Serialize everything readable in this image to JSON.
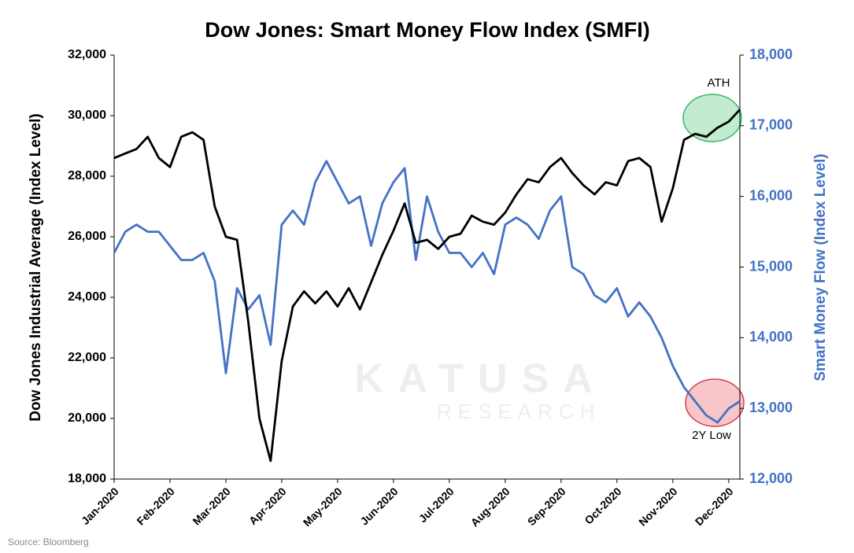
{
  "chart_data": {
    "type": "line",
    "title": "Dow Jones: Smart Money Flow Index (SMFI)",
    "y_label": "Dow Jones Industrial Average (Index Level)",
    "y2_label": "Smart Money Flow (Index Level)",
    "source": "Source: Bloomberg",
    "watermark": [
      "KATUSA",
      "RESEARCH"
    ],
    "annotations": [
      "ATH",
      "2Y Low"
    ],
    "categories": [
      "Jan-2020",
      null,
      null,
      null,
      null,
      "Feb-2020",
      null,
      null,
      null,
      null,
      "Mar-2020",
      null,
      null,
      null,
      null,
      "Apr-2020",
      null,
      null,
      null,
      null,
      "May-2020",
      null,
      null,
      null,
      null,
      "Jun-2020",
      null,
      null,
      null,
      null,
      "Jul-2020",
      null,
      null,
      null,
      null,
      "Aug-2020",
      null,
      null,
      null,
      null,
      "Sep-2020",
      null,
      null,
      null,
      null,
      "Oct-2020",
      null,
      null,
      null,
      null,
      "Nov-2020",
      null,
      null,
      null,
      null,
      "Dec-2020",
      null
    ],
    "series": [
      {
        "color": "#000000",
        "values": [
          28600,
          28750,
          28900,
          29300,
          28600,
          28300,
          29300,
          29450,
          29200,
          27000,
          26000,
          25900,
          23200,
          20000,
          18600,
          21900,
          23700,
          24200,
          23800,
          24200,
          23700,
          24300,
          23600,
          24500,
          25400,
          26200,
          27100,
          25800,
          25900,
          25600,
          26000,
          26100,
          26700,
          26500,
          26400,
          26800,
          27400,
          27900,
          27800,
          28300,
          28600,
          28100,
          27700,
          27400,
          27800,
          27700,
          28500,
          28600,
          28300,
          26500,
          27600,
          29200,
          29400,
          29300,
          29600,
          29800,
          30200
        ]
      },
      {
        "color": "#4472c4",
        "axis": "y2",
        "values": [
          15200,
          15500,
          15600,
          15500,
          15500,
          15300,
          15100,
          15100,
          15200,
          14800,
          13500,
          14700,
          14400,
          14600,
          13900,
          15600,
          15800,
          15600,
          16200,
          16500,
          16200,
          15900,
          16000,
          15300,
          15900,
          16200,
          16400,
          15100,
          16000,
          15500,
          15200,
          15200,
          15000,
          15200,
          14900,
          15600,
          15700,
          15600,
          15400,
          15800,
          16000,
          15000,
          14900,
          14600,
          14500,
          14700,
          14300,
          14500,
          14300,
          14000,
          13600,
          13300,
          13100,
          12900,
          12800,
          13000,
          13100
        ]
      }
    ],
    "ylim": [
      18000,
      32000
    ],
    "yticks": [
      {
        "value": 18000,
        "label": "18,000"
      },
      {
        "value": 20000,
        "label": "20,000"
      },
      {
        "value": 22000,
        "label": "22,000"
      },
      {
        "value": 24000,
        "label": "24,000"
      },
      {
        "value": 26000,
        "label": "26,000"
      },
      {
        "value": 28000,
        "label": "28,000"
      },
      {
        "value": 30000,
        "label": "30,000"
      },
      {
        "value": 32000,
        "label": "32,000"
      }
    ],
    "y2lim": [
      12000,
      18000
    ],
    "y2ticks": [
      {
        "value": 12000,
        "label": "12,000"
      },
      {
        "value": 13000,
        "label": "13,000"
      },
      {
        "value": 14000,
        "label": "14,000"
      },
      {
        "value": 15000,
        "label": "15,000"
      },
      {
        "value": 16000,
        "label": "16,000"
      },
      {
        "value": 17000,
        "label": "17,000"
      },
      {
        "value": 18000,
        "label": "18,000"
      }
    ],
    "grid": false
  }
}
